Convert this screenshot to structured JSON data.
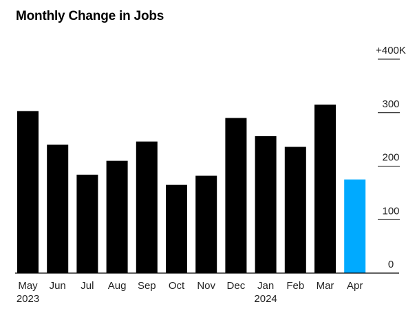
{
  "chart_data": {
    "type": "bar",
    "title": "Monthly Change in Jobs",
    "categories": [
      "May",
      "Jun",
      "Jul",
      "Aug",
      "Sep",
      "Oct",
      "Nov",
      "Dec",
      "Jan",
      "Feb",
      "Mar",
      "Apr"
    ],
    "year_labels": [
      "2023",
      "",
      "",
      "",
      "",
      "",
      "",
      "",
      "2024",
      "",
      "",
      ""
    ],
    "values": [
      303,
      240,
      184,
      210,
      246,
      165,
      182,
      290,
      256,
      236,
      315,
      175
    ],
    "highlight_index": 11,
    "colors": {
      "bar": "#000000",
      "highlight": "#00aaff",
      "axis": "#000000"
    },
    "ylim": [
      0,
      400
    ],
    "yticks": [
      {
        "value": 0,
        "label": "0"
      },
      {
        "value": 100,
        "label": "100"
      },
      {
        "value": 200,
        "label": "200"
      },
      {
        "value": 300,
        "label": "300"
      },
      {
        "value": 400,
        "label": "+400K"
      }
    ],
    "xlabel": "",
    "ylabel": "",
    "grid": false,
    "y_axis_side": "right"
  }
}
